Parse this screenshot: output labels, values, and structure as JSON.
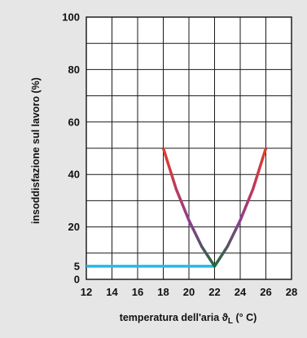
{
  "chart_data": {
    "type": "line",
    "xlabel_main": "temperatura dell'aria ϑ",
    "xlabel_sub": "L",
    "xlabel_unit": " (° C)",
    "ylabel": "insoddisfazione sul lavoro (%)",
    "xlim": [
      12,
      28
    ],
    "ylim": [
      0,
      100
    ],
    "x_ticks": [
      12,
      14,
      16,
      18,
      20,
      22,
      24,
      26,
      28
    ],
    "y_ticks": [
      0,
      5,
      20,
      40,
      60,
      80,
      100
    ],
    "x_grid": [
      12,
      14,
      16,
      18,
      20,
      22,
      24,
      26,
      28
    ],
    "y_grid": [
      0,
      10,
      20,
      30,
      40,
      50,
      60,
      70,
      80,
      90,
      100
    ],
    "grid": true,
    "series": [
      {
        "x": [
          12,
          22
        ],
        "y": [
          5,
          5
        ],
        "color": "#29b7e9"
      },
      {
        "x": [
          18,
          19,
          20,
          21,
          22,
          23,
          24,
          25,
          26
        ],
        "y": [
          50,
          34.5,
          22.5,
          12.5,
          5,
          12.5,
          22.5,
          34.5,
          50
        ],
        "gradient": [
          "#e43b2b",
          "#8e3e8e",
          "#1f6b3c",
          "#8e3e8e",
          "#e43b2b"
        ]
      }
    ]
  }
}
